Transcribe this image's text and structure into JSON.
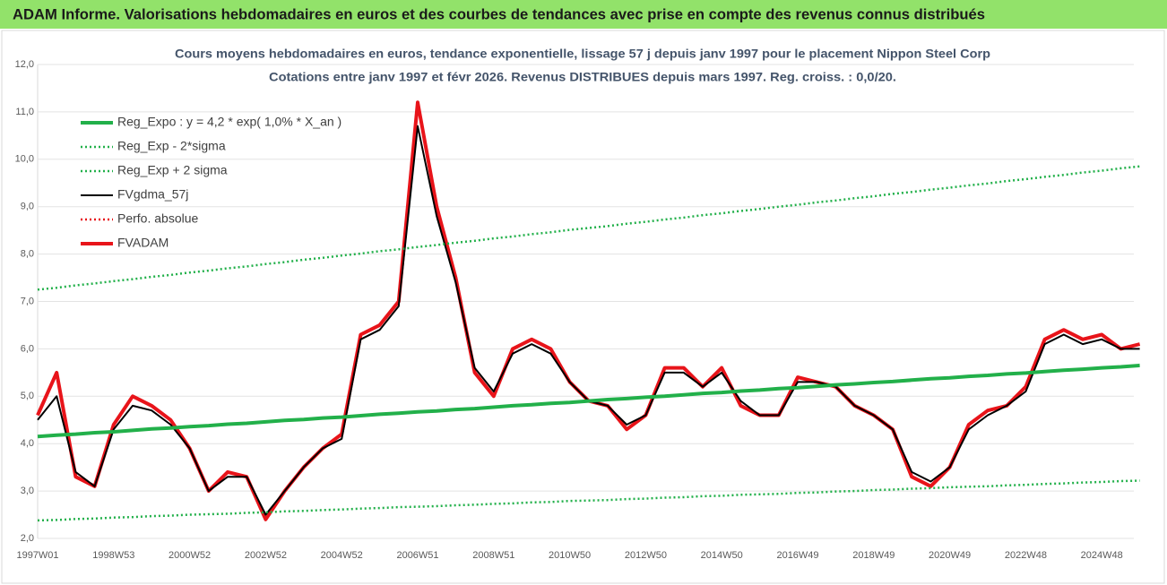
{
  "chart_data": {
    "type": "line",
    "header": "ADAM Informe. Valorisations hebdomadaires en euros et des courbes de tendances avec prise en compte des revenus connus distribués",
    "title": "Cours moyens hebdomadaires en euros, tendance exponentielle, lissage 57 j depuis janv 1997 pour le placement Nippon Steel Corp",
    "subtitle": "Cotations entre janv 1997 et févr 2026. Revenus DISTRIBUES depuis mars 1997. Reg. croiss. : 0,0/20.",
    "categories": [
      "1997W01",
      null,
      null,
      null,
      "1998W53",
      null,
      null,
      null,
      "2000W52",
      null,
      null,
      null,
      "2002W52",
      null,
      null,
      null,
      "2004W52",
      null,
      null,
      null,
      "2006W51",
      null,
      null,
      null,
      "2008W51",
      null,
      null,
      null,
      "2010W50",
      null,
      null,
      null,
      "2012W50",
      null,
      null,
      null,
      "2014W50",
      null,
      null,
      null,
      "2016W49",
      null,
      null,
      null,
      "2018W49",
      null,
      null,
      null,
      "2020W49",
      null,
      null,
      null,
      "2022W48",
      null,
      null,
      null,
      "2024W48",
      null,
      null
    ],
    "ylim": [
      2,
      12
    ],
    "yticks": [
      {
        "value": 2,
        "label": "2,0"
      },
      {
        "value": 3,
        "label": "3,0"
      },
      {
        "value": 4,
        "label": "4,0"
      },
      {
        "value": 5,
        "label": "5,0"
      },
      {
        "value": 6,
        "label": "6,0"
      },
      {
        "value": 7,
        "label": "7,0"
      },
      {
        "value": 8,
        "label": "8,0"
      },
      {
        "value": 9,
        "label": "9,0"
      },
      {
        "value": 10,
        "label": "10,0"
      },
      {
        "value": 11,
        "label": "11,0"
      },
      {
        "value": 12,
        "label": "12,0"
      }
    ],
    "grid": true,
    "legend": "upper left",
    "series": [
      {
        "name": "Reg_Expo : y = 4,2 * exp( 1,0% *  X_an )",
        "color": "#22b04a",
        "style": "solid",
        "weight": "heavy",
        "values": [
          4.15,
          4.18,
          4.2,
          4.23,
          4.25,
          4.28,
          4.31,
          4.33,
          4.36,
          4.38,
          4.41,
          4.43,
          4.46,
          4.49,
          4.51,
          4.54,
          4.56,
          4.59,
          4.62,
          4.64,
          4.67,
          4.69,
          4.72,
          4.74,
          4.77,
          4.8,
          4.82,
          4.85,
          4.87,
          4.9,
          4.93,
          4.95,
          4.98,
          5.0,
          5.03,
          5.06,
          5.08,
          5.11,
          5.13,
          5.16,
          5.18,
          5.21,
          5.24,
          5.26,
          5.29,
          5.31,
          5.34,
          5.37,
          5.39,
          5.42,
          5.44,
          5.47,
          5.49,
          5.52,
          5.55,
          5.57,
          5.6,
          5.62,
          5.65
        ]
      },
      {
        "name": "Reg_Exp - 2*sigma",
        "color": "#22b04a",
        "style": "dotted",
        "weight": "normal",
        "values": [
          2.38,
          2.39,
          2.41,
          2.42,
          2.44,
          2.45,
          2.47,
          2.48,
          2.5,
          2.51,
          2.52,
          2.54,
          2.55,
          2.57,
          2.58,
          2.6,
          2.61,
          2.63,
          2.64,
          2.66,
          2.67,
          2.68,
          2.7,
          2.71,
          2.73,
          2.74,
          2.76,
          2.77,
          2.79,
          2.8,
          2.81,
          2.83,
          2.84,
          2.86,
          2.87,
          2.89,
          2.9,
          2.92,
          2.93,
          2.94,
          2.96,
          2.97,
          2.99,
          3.0,
          3.02,
          3.03,
          3.05,
          3.06,
          3.08,
          3.09,
          3.1,
          3.12,
          3.13,
          3.15,
          3.16,
          3.18,
          3.19,
          3.21,
          3.22
        ]
      },
      {
        "name": "Reg_Exp + 2 sigma",
        "color": "#22b04a",
        "style": "dotted",
        "weight": "normal",
        "values": [
          7.25,
          7.29,
          7.34,
          7.38,
          7.43,
          7.47,
          7.52,
          7.56,
          7.61,
          7.65,
          7.7,
          7.74,
          7.79,
          7.83,
          7.88,
          7.92,
          7.97,
          8.01,
          8.06,
          8.1,
          8.15,
          8.19,
          8.24,
          8.28,
          8.33,
          8.37,
          8.42,
          8.46,
          8.51,
          8.55,
          8.59,
          8.64,
          8.68,
          8.73,
          8.77,
          8.82,
          8.86,
          8.91,
          8.95,
          9.0,
          9.04,
          9.09,
          9.13,
          9.18,
          9.22,
          9.27,
          9.31,
          9.36,
          9.4,
          9.45,
          9.49,
          9.54,
          9.58,
          9.63,
          9.67,
          9.72,
          9.76,
          9.81,
          9.85
        ]
      },
      {
        "name": "FVgdma_57j",
        "color": "#000000",
        "style": "solid",
        "weight": "normal",
        "values": [
          4.5,
          5.0,
          3.4,
          3.1,
          4.3,
          4.8,
          4.7,
          4.4,
          3.9,
          3.0,
          3.3,
          3.3,
          2.5,
          3.0,
          3.5,
          3.9,
          4.1,
          6.2,
          6.4,
          6.9,
          10.7,
          8.8,
          7.4,
          5.6,
          5.1,
          5.9,
          6.1,
          5.9,
          5.3,
          4.9,
          4.8,
          4.4,
          4.6,
          5.5,
          5.5,
          5.2,
          5.5,
          4.9,
          4.6,
          4.6,
          5.3,
          5.3,
          5.2,
          4.8,
          4.6,
          4.3,
          3.4,
          3.2,
          3.5,
          4.3,
          4.6,
          4.8,
          5.1,
          6.1,
          6.3,
          6.1,
          6.2,
          6.0,
          6.0
        ]
      },
      {
        "name": "Perfo. absolue",
        "color": "#e8141a",
        "style": "dotted",
        "weight": "normal",
        "values": [
          null,
          null,
          null,
          null,
          null,
          null,
          null,
          null,
          null,
          null,
          null,
          null,
          null,
          null,
          null,
          null,
          null,
          null,
          null,
          null,
          null,
          null,
          null,
          null,
          null,
          null,
          null,
          null,
          null,
          null,
          null,
          null,
          null,
          null,
          null,
          null,
          null,
          null,
          null,
          null,
          null,
          null,
          null,
          null,
          null,
          null,
          null,
          null,
          null,
          null,
          null,
          null,
          null,
          null,
          null,
          null,
          null,
          null,
          null
        ]
      },
      {
        "name": "FVADAM",
        "color": "#e8141a",
        "style": "solid",
        "weight": "heavy",
        "values": [
          4.6,
          5.5,
          3.3,
          3.1,
          4.4,
          5.0,
          4.8,
          4.5,
          3.9,
          3.0,
          3.4,
          3.3,
          2.4,
          3.0,
          3.5,
          3.9,
          4.2,
          6.3,
          6.5,
          7.0,
          11.2,
          9.0,
          7.5,
          5.5,
          5.0,
          6.0,
          6.2,
          6.0,
          5.3,
          4.9,
          4.8,
          4.3,
          4.6,
          5.6,
          5.6,
          5.2,
          5.6,
          4.8,
          4.6,
          4.6,
          5.4,
          5.3,
          5.2,
          4.8,
          4.6,
          4.3,
          3.3,
          3.1,
          3.5,
          4.4,
          4.7,
          4.8,
          5.2,
          6.2,
          6.4,
          6.2,
          6.3,
          6.0,
          6.1
        ]
      }
    ]
  }
}
